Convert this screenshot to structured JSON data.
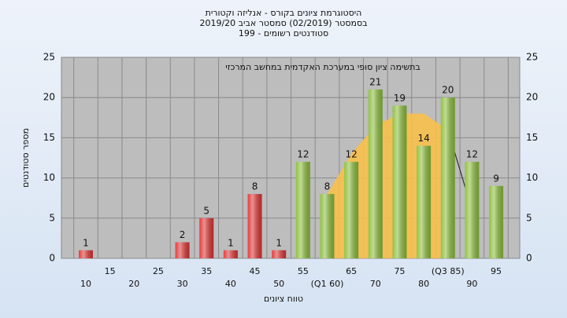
{
  "chart_data": {
    "type": "bar",
    "title": "היסטוגרמת ציונים בקורס - אנליזה וקטורית",
    "subtitle": "בסמסטר (02/2019) סמסטר אביב 2019/20",
    "subtitle2": "סטודנטים רשומים - 199",
    "annotation": "בתשימה ציון סופי במערכת האקדמית במחשב המרכזי",
    "x_label": "טווח ציונים",
    "y_label": "מספר סטודנטים",
    "categories": [
      "10",
      "15",
      "20",
      "25",
      "30",
      "35",
      "40",
      "45",
      "50",
      "55",
      "(Q1 60)",
      "65",
      "70",
      "75",
      "80",
      "(Q3 85)",
      "90",
      "95"
    ],
    "values": [
      1,
      0,
      0,
      0,
      2,
      5,
      1,
      8,
      1,
      12,
      8,
      12,
      21,
      19,
      14,
      20,
      12,
      9
    ],
    "value_labels": [
      "1",
      null,
      null,
      null,
      "2",
      "5",
      "1",
      "8",
      "1",
      "12",
      "8",
      "12",
      "21",
      "19",
      "14",
      "20",
      "12",
      "9"
    ],
    "colors": [
      "#e03535",
      "#e03535",
      "#e03535",
      "#e03535",
      "#e03535",
      "#e03535",
      "#e03535",
      "#e03535",
      "#e03535",
      "#8dbf3c",
      "#8dbf3c",
      "#8dbf3c",
      "#8dbf3c",
      "#8dbf3c",
      "#8dbf3c",
      "#8dbf3c",
      "#8dbf3c",
      "#8dbf3c"
    ],
    "area": {
      "color": "#f7c04a",
      "values": [
        null,
        null,
        null,
        null,
        null,
        null,
        null,
        null,
        null,
        null,
        8,
        13,
        16.5,
        18,
        18,
        16,
        null,
        null
      ]
    },
    "trend_line": {
      "color": "#333333",
      "values": [
        null,
        null,
        null,
        null,
        null,
        null,
        null,
        null,
        null,
        null,
        null,
        null,
        null,
        null,
        null,
        16,
        6,
        null
      ]
    },
    "ylim": [
      0,
      25
    ],
    "yticks": [
      0,
      5,
      10,
      15,
      20,
      25
    ],
    "grid": true
  }
}
